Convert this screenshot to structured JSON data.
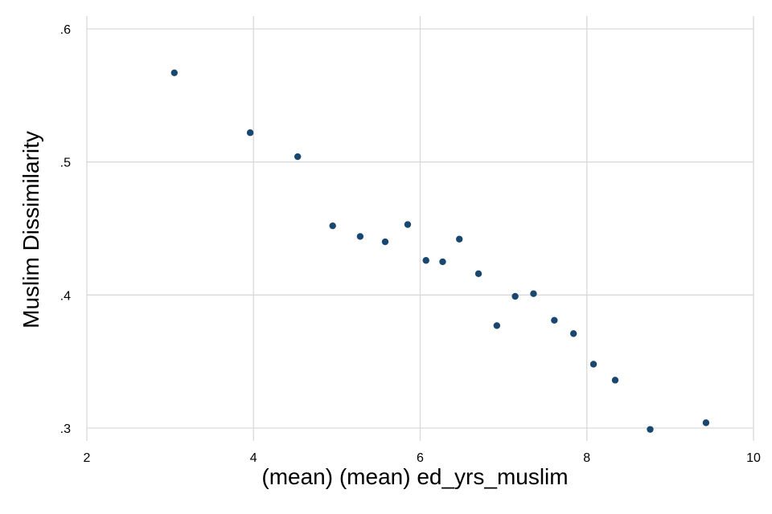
{
  "chart_data": {
    "type": "scatter",
    "title": "",
    "xlabel": "(mean) (mean) ed_yrs_muslim",
    "ylabel": "Muslim Dissimilarity",
    "xlim": [
      2,
      10
    ],
    "ylim": [
      0.3,
      0.6
    ],
    "x_ticks": [
      2,
      4,
      6,
      8,
      10
    ],
    "x_tick_labels": [
      "2",
      "4",
      "6",
      "8",
      "10"
    ],
    "y_ticks": [
      0.3,
      0.4,
      0.5,
      0.6
    ],
    "y_tick_labels": [
      ".3",
      ".4",
      ".5",
      ".6"
    ],
    "grid": true,
    "legend": "none",
    "series": [
      {
        "color": "#1a476f",
        "points": [
          {
            "x": 3.05,
            "y": 0.567
          },
          {
            "x": 3.96,
            "y": 0.522
          },
          {
            "x": 4.53,
            "y": 0.504
          },
          {
            "x": 4.95,
            "y": 0.452
          },
          {
            "x": 5.28,
            "y": 0.444
          },
          {
            "x": 5.58,
            "y": 0.44
          },
          {
            "x": 5.85,
            "y": 0.453
          },
          {
            "x": 6.07,
            "y": 0.426
          },
          {
            "x": 6.27,
            "y": 0.425
          },
          {
            "x": 6.47,
            "y": 0.442
          },
          {
            "x": 6.7,
            "y": 0.416
          },
          {
            "x": 6.92,
            "y": 0.377
          },
          {
            "x": 7.14,
            "y": 0.399
          },
          {
            "x": 7.36,
            "y": 0.401
          },
          {
            "x": 7.61,
            "y": 0.381
          },
          {
            "x": 7.84,
            "y": 0.371
          },
          {
            "x": 8.08,
            "y": 0.348
          },
          {
            "x": 8.34,
            "y": 0.336
          },
          {
            "x": 8.76,
            "y": 0.299
          },
          {
            "x": 9.43,
            "y": 0.304
          }
        ]
      }
    ]
  },
  "colors": {
    "background": "#ffffff",
    "grid": "#d9d9d9",
    "marker": "#1a476f",
    "text": "#000000"
  }
}
